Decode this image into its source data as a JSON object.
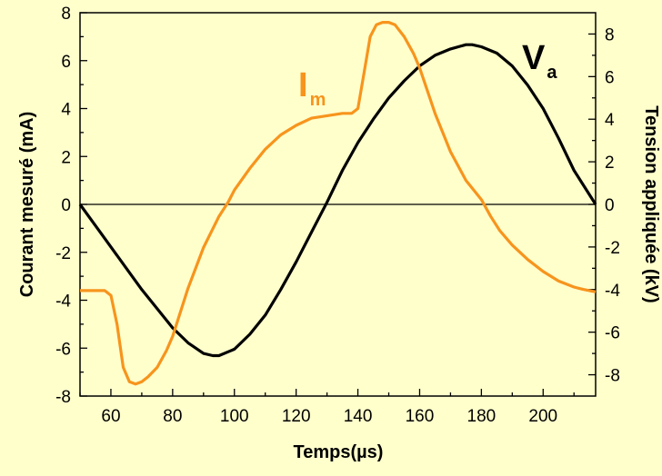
{
  "chart_data": {
    "type": "line",
    "xlabel": "Temps(µs)",
    "ylabel_left": "Courant mesuré (mA)",
    "ylabel_right": "Tension appliquée (kV)",
    "xlim": [
      50,
      217
    ],
    "ylim_left": [
      -8,
      8
    ],
    "ylim_right": [
      -9,
      9
    ],
    "x_ticks": [
      60,
      80,
      100,
      120,
      140,
      160,
      180,
      200
    ],
    "y_left_ticks": [
      -8,
      -6,
      -4,
      -2,
      0,
      2,
      4,
      6,
      8
    ],
    "y_right_ticks": [
      -8,
      -6,
      -4,
      -2,
      0,
      2,
      4,
      6,
      8
    ],
    "zero_line": true,
    "grid": false,
    "colors": {
      "background": "#FFFFCC",
      "current": "#F7941D",
      "voltage": "#000000"
    },
    "series": [
      {
        "name": "I",
        "subscript": "m",
        "axis": "left",
        "x": [
          50,
          55,
          58,
          60,
          62,
          64,
          66,
          68,
          70,
          72,
          75,
          78,
          80,
          85,
          90,
          95,
          98,
          100,
          105,
          110,
          115,
          120,
          125,
          130,
          135,
          138,
          140,
          142,
          144,
          146,
          148,
          150,
          152,
          155,
          158,
          160,
          165,
          170,
          175,
          180,
          183,
          186,
          190,
          195,
          200,
          205,
          210,
          213,
          215,
          217
        ],
        "values": [
          -3.6,
          -3.6,
          -3.6,
          -3.8,
          -5.0,
          -6.8,
          -7.4,
          -7.5,
          -7.4,
          -7.2,
          -6.8,
          -6.1,
          -5.5,
          -3.5,
          -1.8,
          -0.5,
          0.1,
          0.6,
          1.5,
          2.3,
          2.9,
          3.3,
          3.6,
          3.7,
          3.8,
          3.8,
          4.0,
          5.5,
          7.0,
          7.5,
          7.6,
          7.6,
          7.5,
          7.0,
          6.3,
          5.7,
          3.8,
          2.2,
          1.0,
          0.2,
          -0.5,
          -1.1,
          -1.7,
          -2.3,
          -2.8,
          -3.2,
          -3.45,
          -3.55,
          -3.6,
          -3.65
        ]
      },
      {
        "name": "V",
        "subscript": "a",
        "axis": "right",
        "x": [
          50,
          55,
          60,
          65,
          70,
          75,
          80,
          85,
          90,
          93,
          95,
          100,
          105,
          110,
          115,
          120,
          125,
          130,
          135,
          140,
          145,
          150,
          155,
          160,
          165,
          170,
          175,
          177,
          180,
          185,
          190,
          195,
          200,
          205,
          210,
          217
        ],
        "values": [
          0,
          -1.0,
          -2.0,
          -3.0,
          -4.0,
          -4.9,
          -5.8,
          -6.5,
          -7.0,
          -7.1,
          -7.1,
          -6.8,
          -6.1,
          -5.2,
          -4.0,
          -2.7,
          -1.3,
          0.1,
          1.6,
          2.9,
          4.0,
          5.0,
          5.8,
          6.5,
          7.0,
          7.3,
          7.5,
          7.5,
          7.4,
          7.1,
          6.5,
          5.6,
          4.5,
          3.1,
          1.6,
          0
        ]
      }
    ]
  }
}
